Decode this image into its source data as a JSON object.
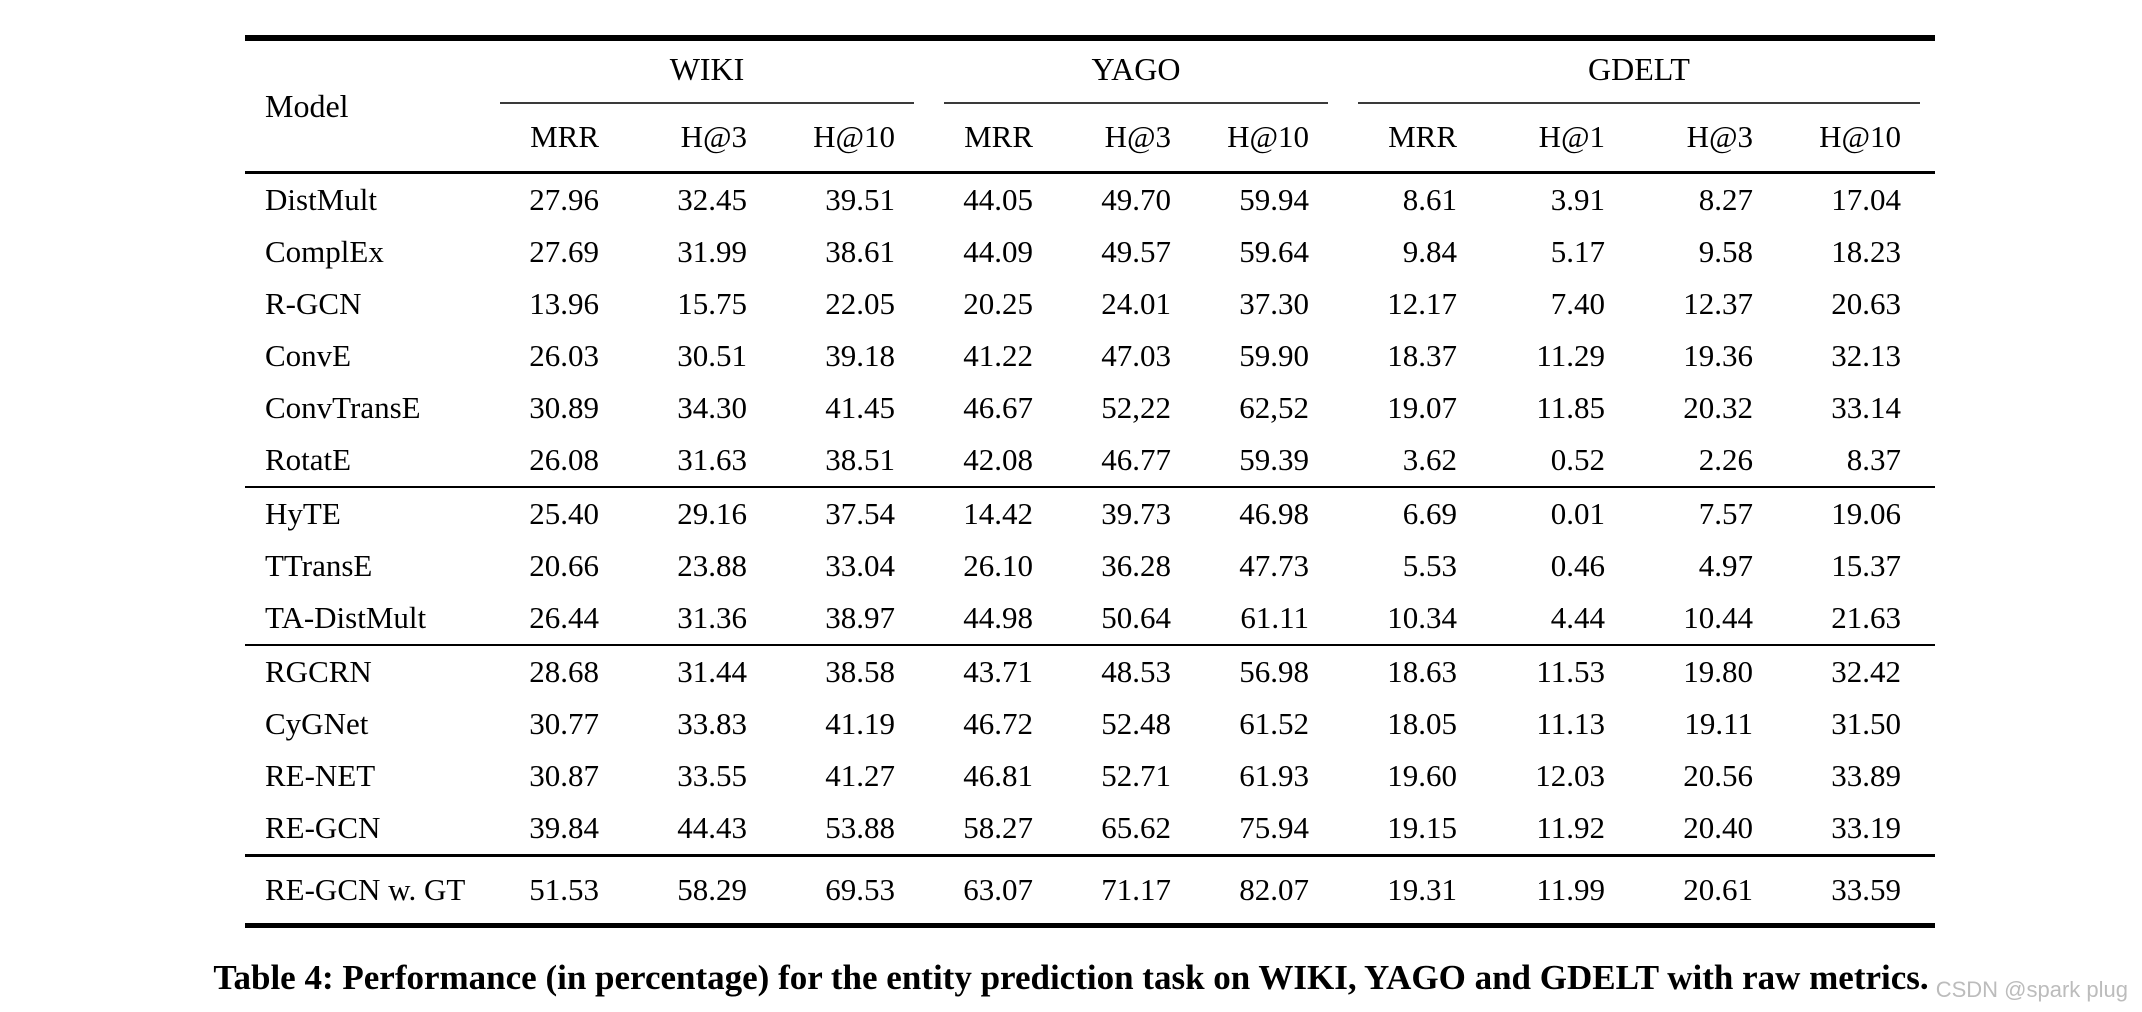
{
  "table": {
    "model_header": "Model",
    "groups": [
      {
        "label": "WIKI",
        "columns": [
          "MRR",
          "H@3",
          "H@10"
        ]
      },
      {
        "label": "YAGO",
        "columns": [
          "MRR",
          "H@3",
          "H@10"
        ]
      },
      {
        "label": "GDELT",
        "columns": [
          "MRR",
          "H@1",
          "H@3",
          "H@10"
        ]
      }
    ],
    "blocks": [
      {
        "rows": [
          {
            "model": "DistMult",
            "values": [
              "27.96",
              "32.45",
              "39.51",
              "44.05",
              "49.70",
              "59.94",
              "8.61",
              "3.91",
              "8.27",
              "17.04"
            ],
            "bold": []
          },
          {
            "model": "ComplEx",
            "values": [
              "27.69",
              "31.99",
              "38.61",
              "44.09",
              "49.57",
              "59.64",
              "9.84",
              "5.17",
              "9.58",
              "18.23"
            ],
            "bold": []
          },
          {
            "model": "R-GCN",
            "values": [
              "13.96",
              "15.75",
              "22.05",
              "20.25",
              "24.01",
              "37.30",
              "12.17",
              "7.40",
              "12.37",
              "20.63"
            ],
            "bold": []
          },
          {
            "model": "ConvE",
            "values": [
              "26.03",
              "30.51",
              "39.18",
              "41.22",
              "47.03",
              "59.90",
              "18.37",
              "11.29",
              "19.36",
              "32.13"
            ],
            "bold": []
          },
          {
            "model": "ConvTransE",
            "values": [
              "30.89",
              "34.30",
              "41.45",
              "46.67",
              "52,22",
              "62,52",
              "19.07",
              "11.85",
              "20.32",
              "33.14"
            ],
            "bold": []
          },
          {
            "model": "RotatE",
            "values": [
              "26.08",
              "31.63",
              "38.51",
              "42.08",
              "46.77",
              "59.39",
              "3.62",
              "0.52",
              "2.26",
              "8.37"
            ],
            "bold": []
          }
        ]
      },
      {
        "rows": [
          {
            "model": "HyTE",
            "values": [
              "25.40",
              "29.16",
              "37.54",
              "14.42",
              "39.73",
              "46.98",
              "6.69",
              "0.01",
              "7.57",
              "19.06"
            ],
            "bold": []
          },
          {
            "model": "TTransE",
            "values": [
              "20.66",
              "23.88",
              "33.04",
              "26.10",
              "36.28",
              "47.73",
              "5.53",
              "0.46",
              "4.97",
              "15.37"
            ],
            "bold": []
          },
          {
            "model": "TA-DistMult",
            "values": [
              "26.44",
              "31.36",
              "38.97",
              "44.98",
              "50.64",
              "61.11",
              "10.34",
              "4.44",
              "10.44",
              "21.63"
            ],
            "bold": []
          }
        ]
      },
      {
        "rows": [
          {
            "model": "RGCRN",
            "values": [
              "28.68",
              "31.44",
              "38.58",
              "43.71",
              "48.53",
              "56.98",
              "18.63",
              "11.53",
              "19.80",
              "32.42"
            ],
            "bold": []
          },
          {
            "model": "CyGNet",
            "values": [
              "30.77",
              "33.83",
              "41.19",
              "46.72",
              "52.48",
              "61.52",
              "18.05",
              "11.13",
              "19.11",
              "31.50"
            ],
            "bold": []
          },
          {
            "model": "RE-NET",
            "values": [
              "30.87",
              "33.55",
              "41.27",
              "46.81",
              "52.71",
              "61.93",
              "19.60",
              "12.03",
              "20.56",
              "33.89"
            ],
            "bold": [
              6,
              7,
              8,
              9
            ]
          },
          {
            "model": "RE-GCN",
            "values": [
              "39.84",
              "44.43",
              "53.88",
              "58.27",
              "65.62",
              "75.94",
              "19.15",
              "11.92",
              "20.40",
              "33.19"
            ],
            "bold": [
              0,
              1,
              2,
              3,
              4,
              5
            ]
          }
        ]
      },
      {
        "rows": [
          {
            "model": "RE-GCN w. GT",
            "values": [
              "51.53",
              "58.29",
              "69.53",
              "63.07",
              "71.17",
              "82.07",
              "19.31",
              "11.99",
              "20.61",
              "33.59"
            ],
            "bold": [
              0,
              1,
              2,
              3,
              4,
              5
            ]
          }
        ]
      }
    ]
  },
  "caption": "Table 4: Performance (in percentage) for the entity prediction task on WIKI, YAGO and GDELT with raw metrics.",
  "watermark": "CSDN @spark plug",
  "colors": {
    "text": "#000000",
    "rule": "#000000",
    "watermark": "#bcbcbc",
    "background": "#ffffff"
  }
}
